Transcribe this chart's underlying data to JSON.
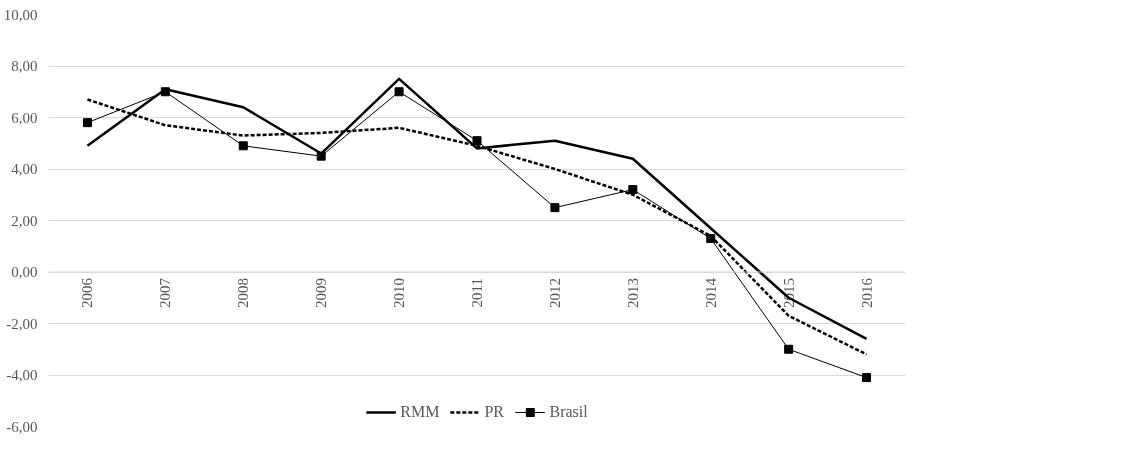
{
  "chart_data": {
    "type": "line",
    "categories": [
      "2006",
      "2007",
      "2008",
      "2009",
      "2010",
      "2011",
      "2012",
      "2013",
      "2014",
      "2015",
      "2016"
    ],
    "series": [
      {
        "name": "RMM",
        "color": "#000000",
        "line_style": "solid",
        "marker": "none",
        "values": [
          4.9,
          7.1,
          6.4,
          4.6,
          7.5,
          4.8,
          5.1,
          4.4,
          1.7,
          -1.0,
          -2.6
        ]
      },
      {
        "name": "PR",
        "color": "#000000",
        "line_style": "dashed",
        "marker": "none",
        "values": [
          6.7,
          5.7,
          5.3,
          5.4,
          5.6,
          4.9,
          4.0,
          3.0,
          1.4,
          -1.7,
          -3.2
        ]
      },
      {
        "name": "Brasil",
        "color": "#000000",
        "line_style": "solid",
        "marker": "square",
        "values": [
          5.8,
          7.0,
          4.9,
          4.5,
          7.0,
          5.1,
          2.5,
          3.2,
          1.3,
          -3.0,
          -4.1
        ]
      }
    ],
    "ylim": [
      -6,
      10
    ],
    "yticks": [
      {
        "value": -6,
        "label": "-6,00"
      },
      {
        "value": -4,
        "label": "-4,00"
      },
      {
        "value": -2,
        "label": "-2,00"
      },
      {
        "value": 0,
        "label": "0,00"
      },
      {
        "value": 2,
        "label": "2,00"
      },
      {
        "value": 4,
        "label": "4,00"
      },
      {
        "value": 6,
        "label": "6,00"
      },
      {
        "value": 8,
        "label": "8,00"
      },
      {
        "value": 10,
        "label": "10,00"
      }
    ],
    "grid": "y",
    "legend": "bottom"
  }
}
